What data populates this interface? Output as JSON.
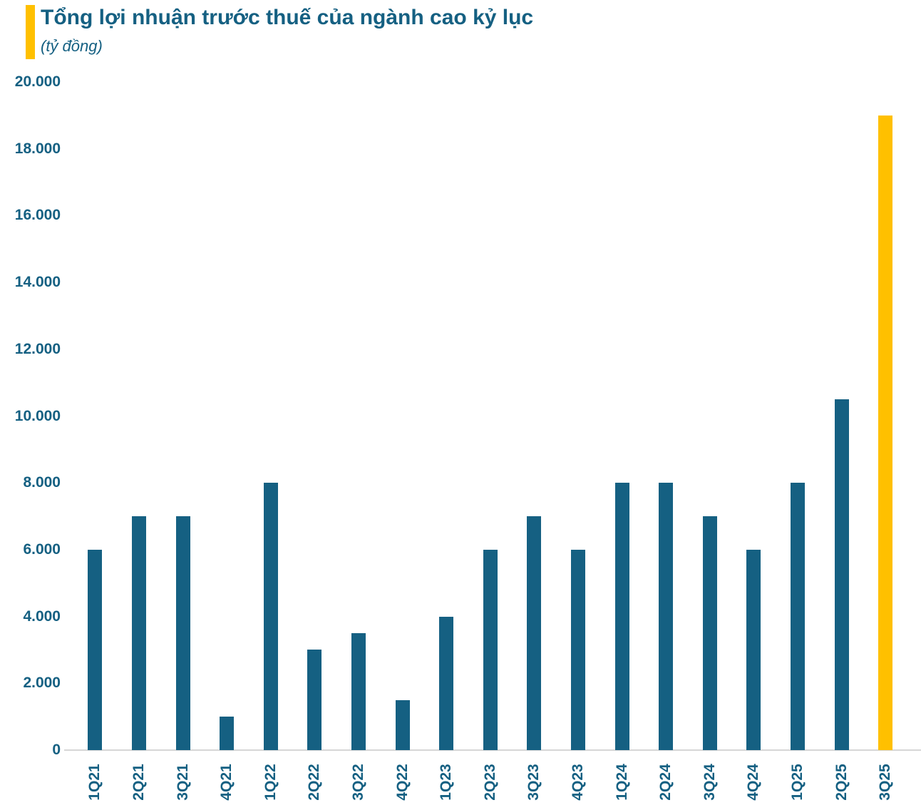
{
  "header": {
    "title": "Tổng lợi nhuận trước thuế của ngành cao kỷ lục",
    "subtitle": "(tỷ đồng)"
  },
  "colors": {
    "accent_gold": "#FFC000",
    "bar_teal": "#156082",
    "text_teal": "#156082",
    "axis_gray": "#D6D6D6",
    "background": "#FFFFFF"
  },
  "chart_data": {
    "type": "bar",
    "title": "Tổng lợi nhuận trước thuế của ngành cao kỷ lục",
    "unit_label": "(tỷ đồng)",
    "xlabel": "",
    "ylabel": "tỷ đồng",
    "categories": [
      "1Q21",
      "2Q21",
      "3Q21",
      "4Q21",
      "1Q22",
      "2Q22",
      "3Q22",
      "4Q22",
      "1Q23",
      "2Q23",
      "3Q23",
      "4Q23",
      "1Q24",
      "2Q24",
      "3Q24",
      "4Q24",
      "1Q25",
      "2Q25",
      "3Q25"
    ],
    "values": [
      6000,
      7000,
      7000,
      1000,
      8000,
      3000,
      3500,
      1500,
      4000,
      6000,
      7000,
      6000,
      8000,
      8000,
      7000,
      6000,
      8000,
      10500,
      19000
    ],
    "bar_color": "#156082",
    "highlight_index": 18,
    "highlight_color": "#FFC000",
    "ylim": [
      0,
      20000
    ],
    "ytick_step": 2000,
    "ytick_values": [
      20000,
      18000,
      16000,
      14000,
      12000,
      10000,
      8000,
      6000,
      4000,
      2000,
      0
    ],
    "ytick_labels": [
      "20.000",
      "18.000",
      "16.000",
      "14.000",
      "12.000",
      "10.000",
      "8.000",
      "6.000",
      "4.000",
      "2.000",
      "0"
    ],
    "grid": false,
    "legend": null
  }
}
